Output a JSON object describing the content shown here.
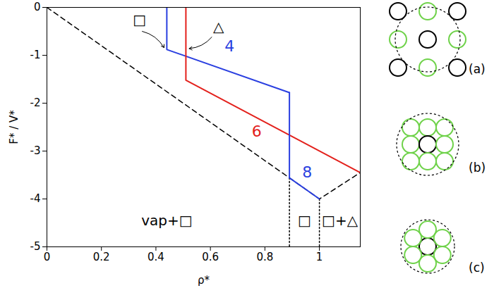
{
  "chart_data": {
    "type": "line",
    "x_label": "ρ*",
    "y_label": "F* / V*",
    "xlim": [
      0,
      1.15
    ],
    "ylim": [
      -5,
      0
    ],
    "xticks": [
      0,
      0.2,
      0.4,
      0.6,
      0.8,
      1
    ],
    "yticks": [
      0,
      -1,
      -2,
      -3,
      -4,
      -5
    ],
    "grid": false,
    "series": [
      {
        "color": "#000000",
        "line_style": "dashed",
        "x": [
          0,
          1.0,
          1.15
        ],
        "values": [
          0,
          -4.0,
          -3.45
        ]
      },
      {
        "color": "#000000",
        "line_style": "dotted",
        "x": [
          0.89,
          0.89
        ],
        "values": [
          -3.56,
          -5
        ]
      },
      {
        "color": "#000000",
        "line_style": "dotted",
        "x": [
          1.0,
          1.0
        ],
        "values": [
          -4.0,
          -5
        ]
      },
      {
        "name": "4",
        "color": "#2a3fe0",
        "line_style": "solid",
        "x": [
          0.44,
          0.44,
          0.89
        ],
        "values": [
          0,
          -0.88,
          -1.78
        ]
      },
      {
        "name": "6",
        "color": "#e3211c",
        "line_style": "solid",
        "x": [
          0.51,
          0.51,
          1.15
        ],
        "values": [
          0,
          -1.52,
          -3.45
        ]
      },
      {
        "name": "8",
        "color": "#2a3fe0",
        "line_style": "solid",
        "x": [
          0.89,
          0.89,
          1.0
        ],
        "values": [
          -1.78,
          -3.56,
          -4.0
        ]
      }
    ],
    "annotations": [
      {
        "text": "vap+□"
      },
      {
        "text": "□"
      },
      {
        "text": "□+△"
      },
      {
        "text": "□"
      },
      {
        "text": "△"
      }
    ]
  },
  "insets": {
    "labels": [
      "(a)",
      "(b)",
      "(c)"
    ]
  }
}
